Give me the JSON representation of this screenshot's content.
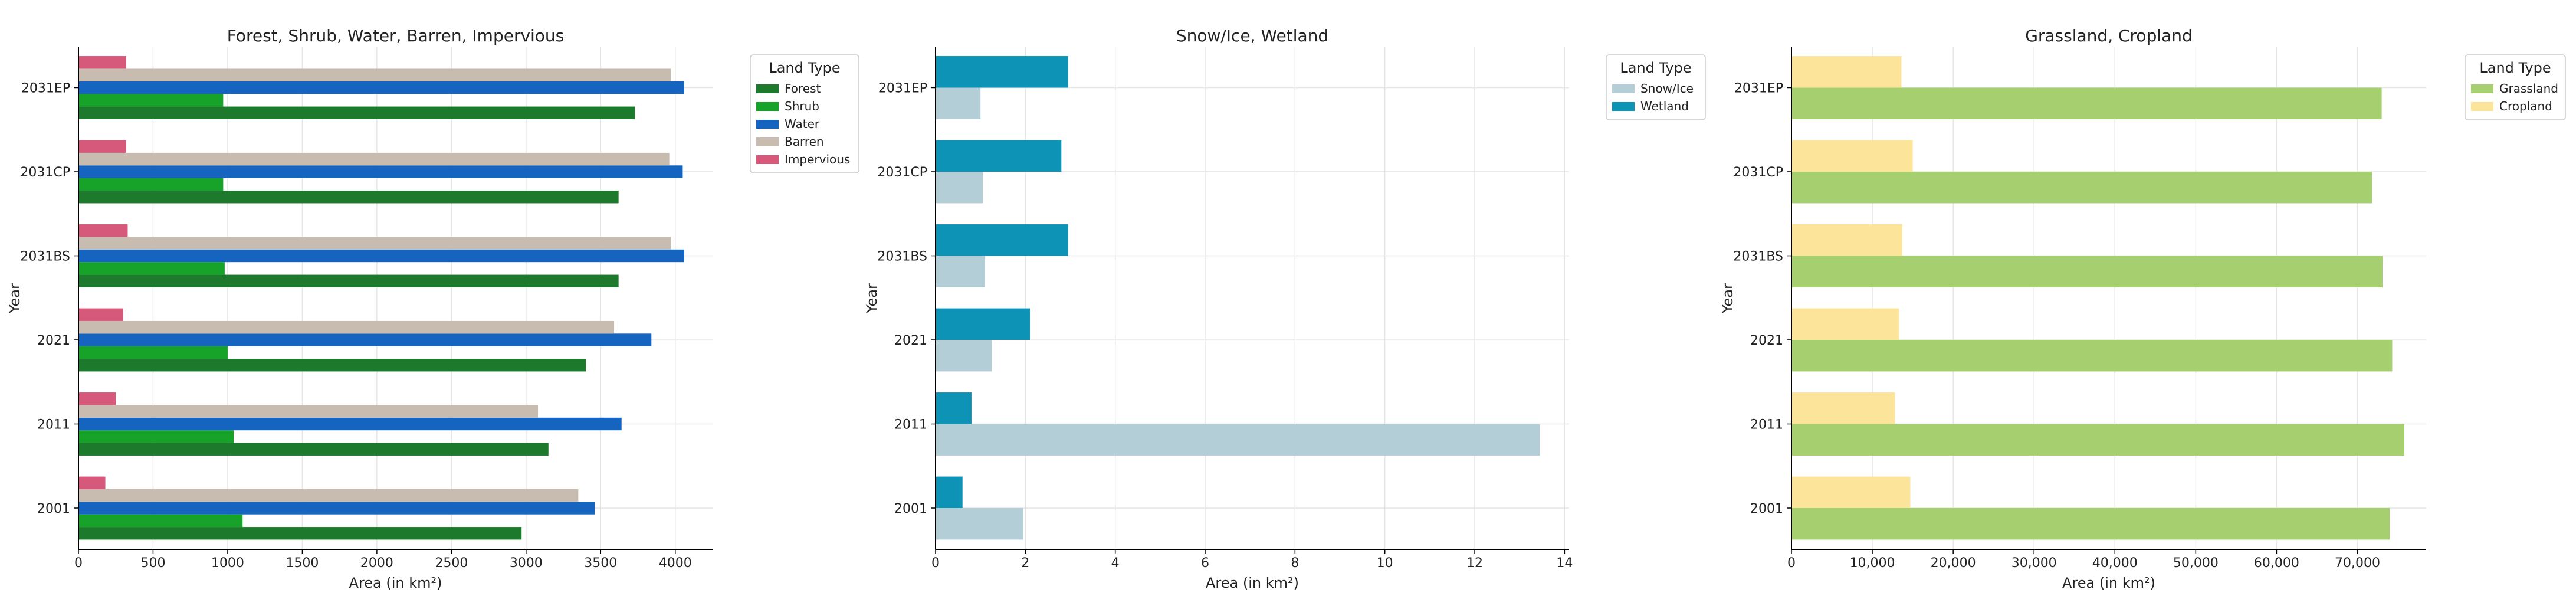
{
  "chart_data": [
    {
      "type": "bar",
      "orientation": "horizontal",
      "title": "Forest, Shrub, Water, Barren, Impervious",
      "xlabel": "Area (in km²)",
      "ylabel": "Year",
      "categories": [
        "2001",
        "2011",
        "2021",
        "2031BS",
        "2031CP",
        "2031EP"
      ],
      "xlim": [
        0,
        4250
      ],
      "xticks": [
        0,
        500,
        1000,
        1500,
        2000,
        2500,
        3000,
        3500,
        4000
      ],
      "xtick_labels": [
        "0",
        "500",
        "1000",
        "1500",
        "2000",
        "2500",
        "3000",
        "3500",
        "4000"
      ],
      "grid": true,
      "legend": {
        "title": "Land Type",
        "placement": "outside-right"
      },
      "series": [
        {
          "name": "Forest",
          "color": "#1d7a2c",
          "values": [
            2970,
            3150,
            3400,
            3620,
            3620,
            3730
          ]
        },
        {
          "name": "Shrub",
          "color": "#17a32a",
          "values": [
            1100,
            1040,
            1000,
            980,
            970,
            970
          ]
        },
        {
          "name": "Water",
          "color": "#1565c0",
          "values": [
            3460,
            3640,
            3840,
            4060,
            4050,
            4060
          ]
        },
        {
          "name": "Barren",
          "color": "#c8bcb1",
          "values": [
            3350,
            3080,
            3590,
            3970,
            3960,
            3970
          ]
        },
        {
          "name": "Impervious",
          "color": "#d6587a",
          "values": [
            180,
            250,
            300,
            330,
            320,
            320
          ]
        }
      ]
    },
    {
      "type": "bar",
      "orientation": "horizontal",
      "title": "Snow/Ice, Wetland",
      "xlabel": "Area (in km²)",
      "ylabel": "Year",
      "categories": [
        "2001",
        "2011",
        "2021",
        "2031BS",
        "2031CP",
        "2031EP"
      ],
      "xlim": [
        0,
        14.1
      ],
      "xticks": [
        0,
        2,
        4,
        6,
        8,
        10,
        12,
        14
      ],
      "xtick_labels": [
        "0",
        "2",
        "4",
        "6",
        "8",
        "10",
        "12",
        "14"
      ],
      "grid": true,
      "legend": {
        "title": "Land Type",
        "placement": "top-right"
      },
      "series": [
        {
          "name": "Snow/Ice",
          "color": "#b3ced6",
          "values": [
            1.95,
            13.45,
            1.25,
            1.1,
            1.05,
            1.0
          ]
        },
        {
          "name": "Wetland",
          "color": "#0c93b5",
          "values": [
            0.6,
            0.8,
            2.1,
            2.95,
            2.8,
            2.95
          ]
        }
      ]
    },
    {
      "type": "bar",
      "orientation": "horizontal",
      "title": "Grassland, Cropland",
      "xlabel": "Area (in km²)",
      "ylabel": "Year",
      "categories": [
        "2001",
        "2011",
        "2021",
        "2031BS",
        "2031CP",
        "2031EP"
      ],
      "xlim": [
        0,
        78500
      ],
      "xticks": [
        0,
        10000,
        20000,
        30000,
        40000,
        50000,
        60000,
        70000
      ],
      "xtick_labels": [
        "0",
        "10,000",
        "20,000",
        "30,000",
        "40,000",
        "50,000",
        "60,000",
        "70,000"
      ],
      "grid": true,
      "legend": {
        "title": "Land Type",
        "placement": "outside-right"
      },
      "series": [
        {
          "name": "Grassland",
          "color": "#a6d070",
          "values": [
            74000,
            75800,
            74300,
            73100,
            71800,
            73000
          ]
        },
        {
          "name": "Cropland",
          "color": "#fde49b",
          "values": [
            14700,
            12800,
            13300,
            13700,
            15000,
            13600
          ]
        }
      ]
    }
  ]
}
